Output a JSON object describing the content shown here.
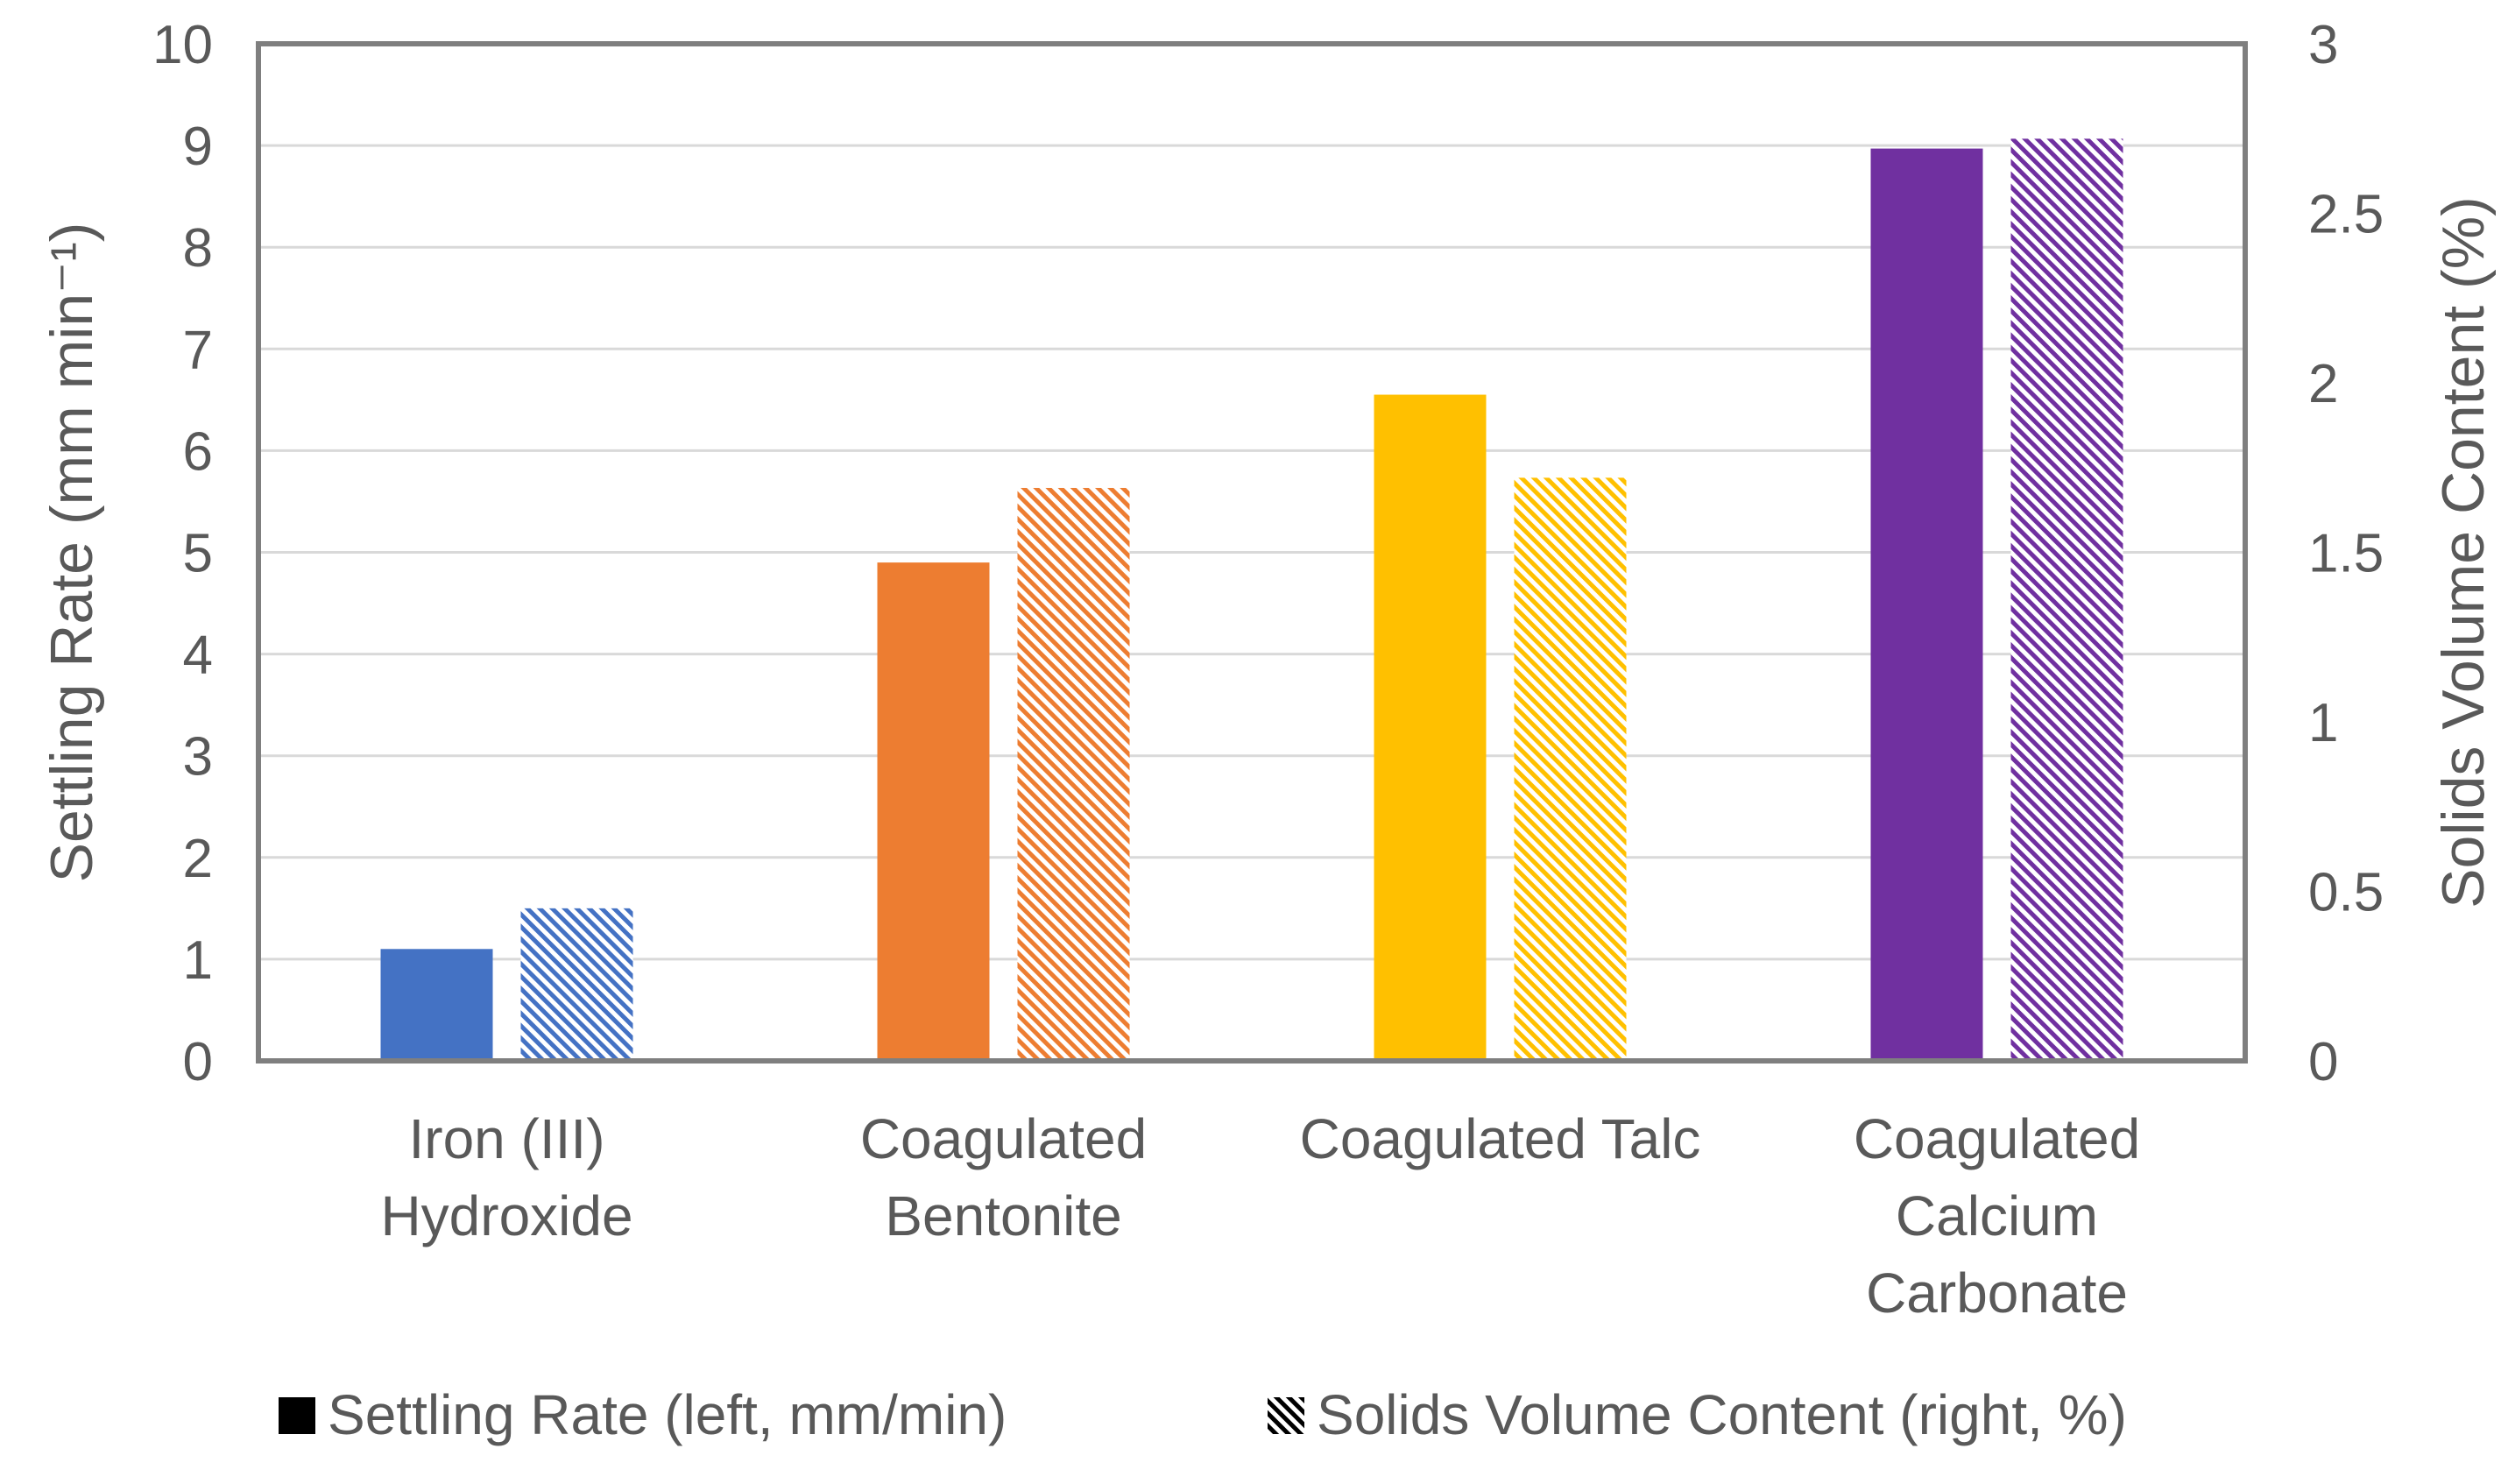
{
  "chart_data": {
    "type": "bar",
    "title": "",
    "categories": [
      [
        "Iron (III)",
        "Hydroxide"
      ],
      [
        "Coagulated",
        "Bentonite"
      ],
      [
        "Coagulated Talc"
      ],
      [
        "Coagulated",
        "Calcium",
        "Carbonate"
      ]
    ],
    "colors": [
      "#4472C4",
      "#ED7D31",
      "#FFC000",
      "#7030A0"
    ],
    "series": [
      {
        "name": "Settling Rate (left, mm/min)",
        "axis": "left",
        "pattern": "solid",
        "values": [
          1.1,
          4.9,
          6.55,
          8.97
        ]
      },
      {
        "name": "Solids Volume Content (right, %)",
        "axis": "right",
        "pattern": "hatched",
        "values": [
          0.45,
          1.69,
          1.72,
          2.72
        ]
      }
    ],
    "ylabel_left": "Settling Rate (mm min⁻¹)",
    "ylabel_right": "Solids Volume Content (%)",
    "ylim_left": [
      0,
      10
    ],
    "ylim_right": [
      0,
      3
    ],
    "yticks_left": [
      "0",
      "1",
      "2",
      "3",
      "4",
      "5",
      "6",
      "7",
      "8",
      "9",
      "10"
    ],
    "yticks_right": [
      "0",
      "0.5",
      "1",
      "1.5",
      "2",
      "2.5",
      "3"
    ],
    "grid": true,
    "legend_position": "bottom"
  }
}
